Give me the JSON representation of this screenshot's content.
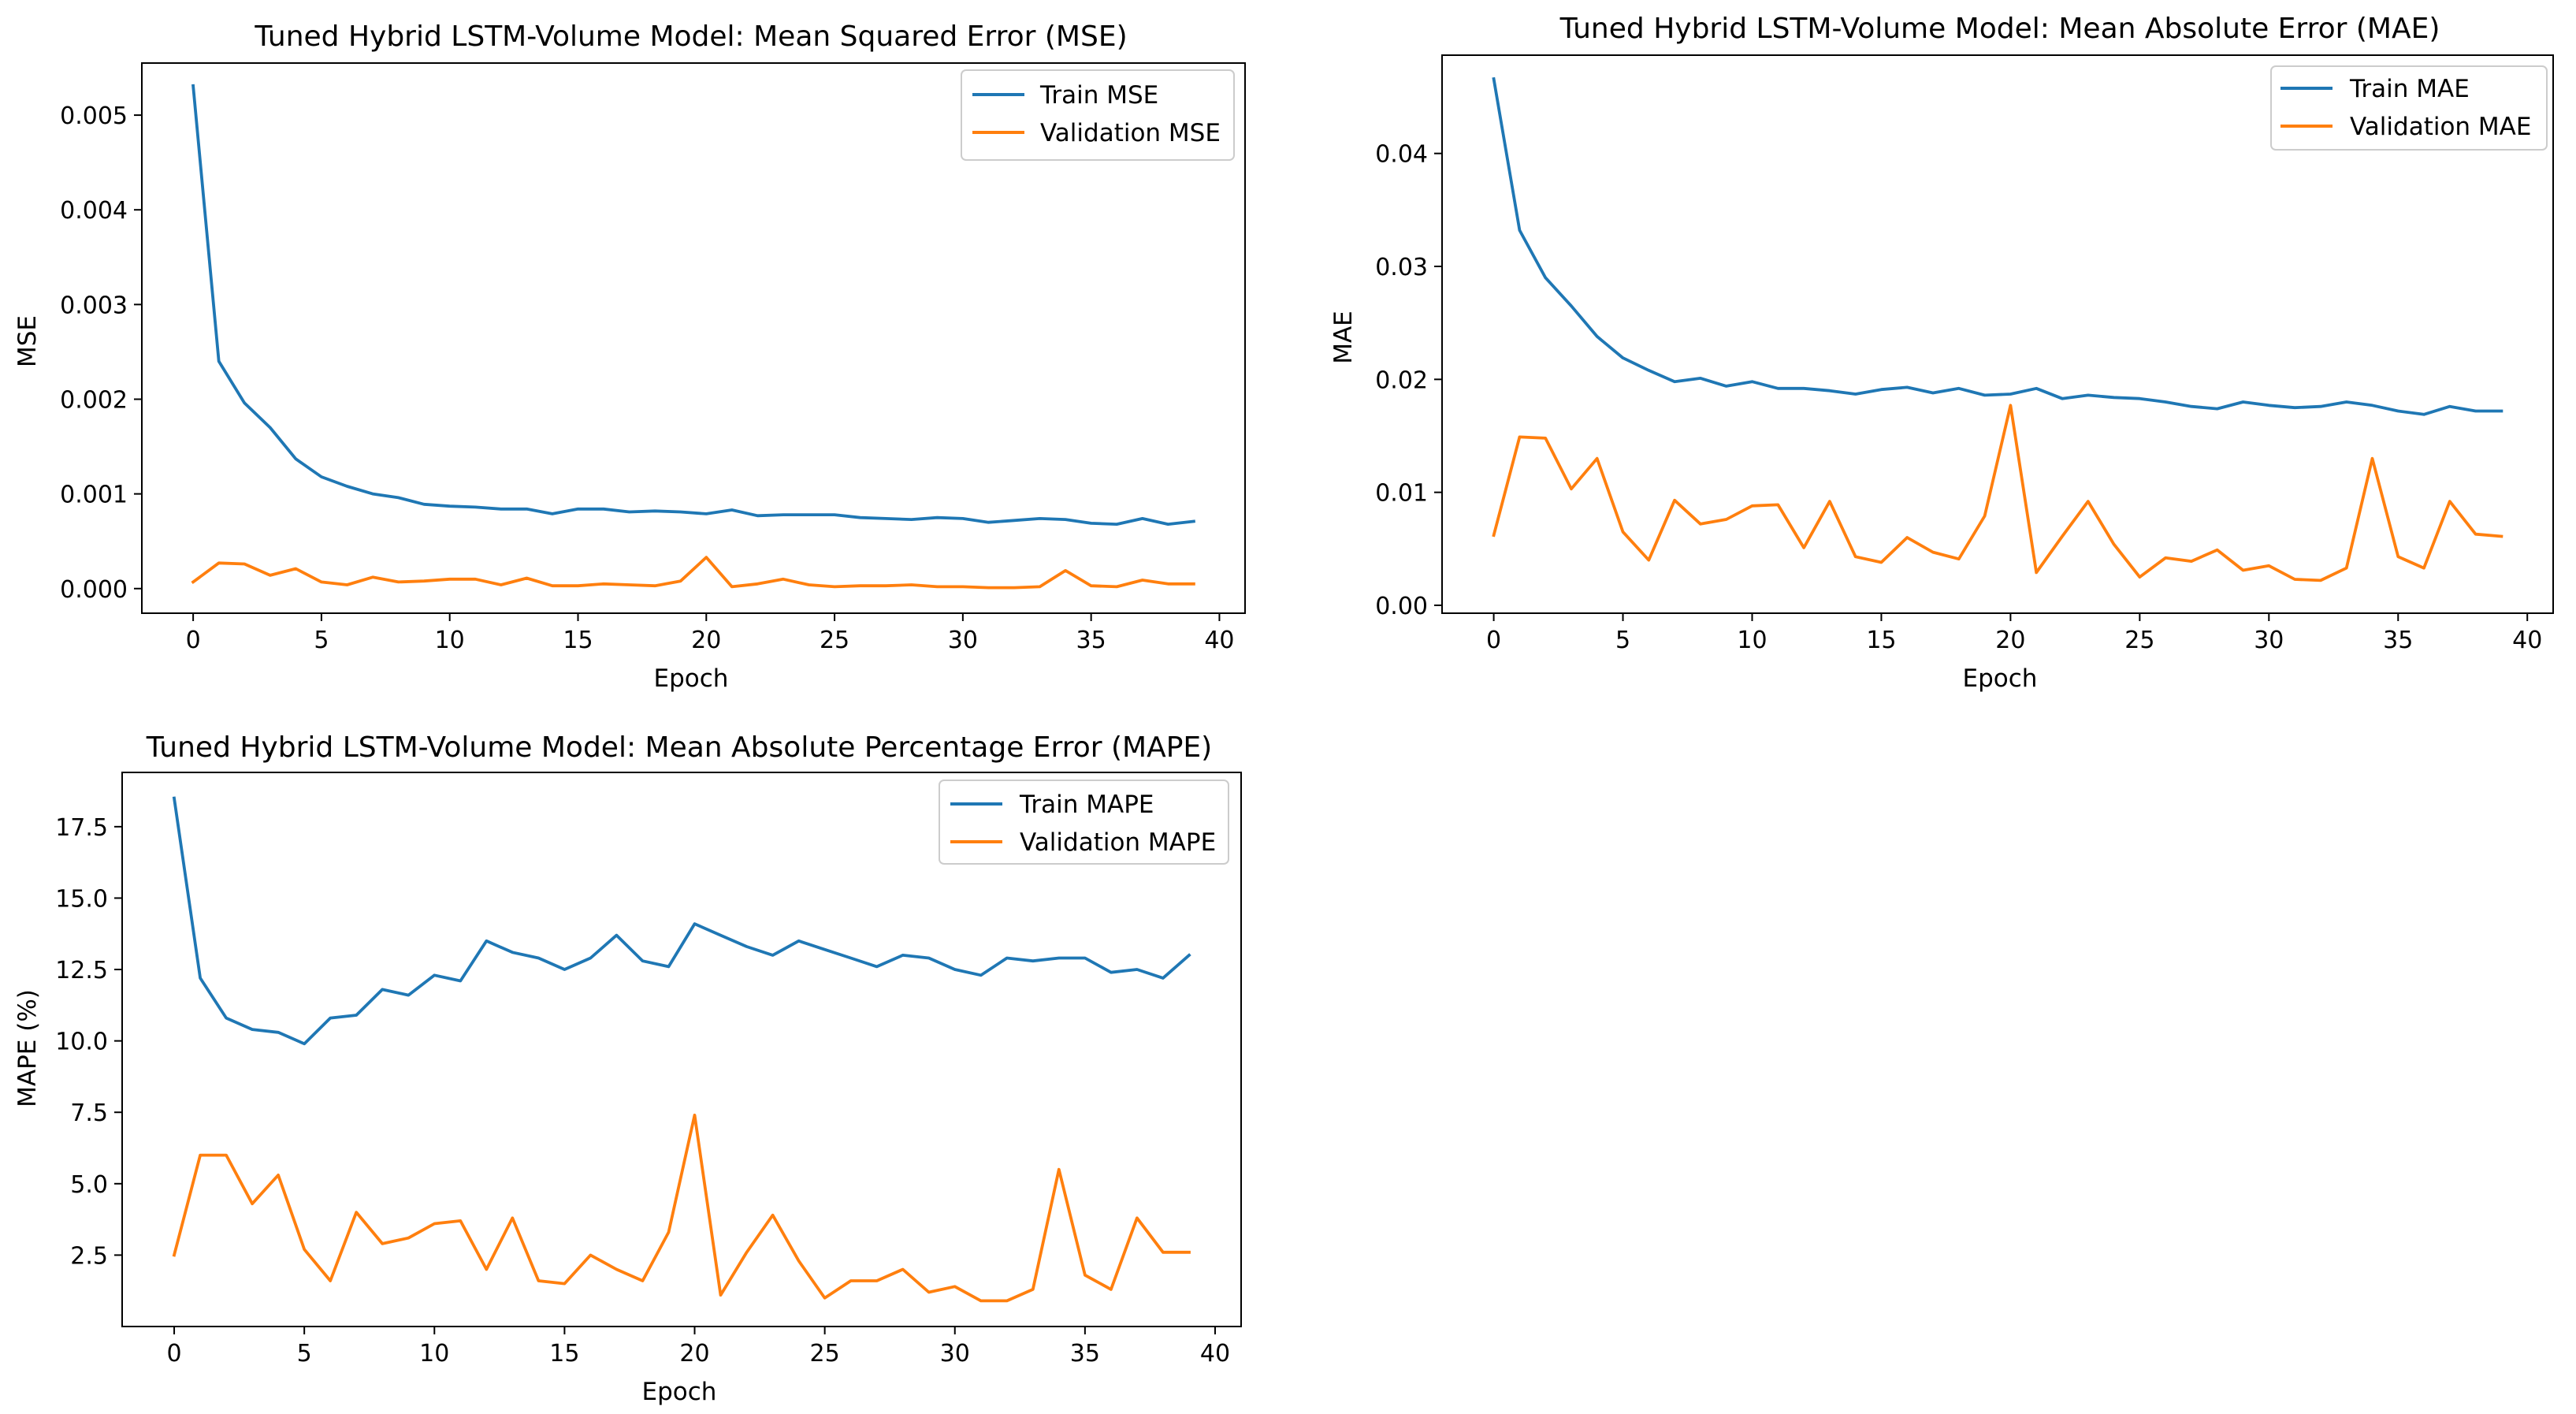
{
  "chart_data": [
    {
      "type": "line",
      "title": "Tuned Hybrid LSTM-Volume Model: Mean Squared Error (MSE)",
      "xlabel": "Epoch",
      "ylabel": "MSE",
      "xlim": [
        -2.0,
        41.0
      ],
      "ylim": [
        -0.00026,
        0.00555
      ],
      "xticks": [
        0,
        5,
        10,
        15,
        20,
        25,
        30,
        35,
        40
      ],
      "xtick_labels": [
        "0",
        "5",
        "10",
        "15",
        "20",
        "25",
        "30",
        "35",
        "40"
      ],
      "yticks": [
        0,
        0.001,
        0.002,
        0.003,
        0.004,
        0.005
      ],
      "ytick_labels": [
        "0.000",
        "0.001",
        "0.002",
        "0.003",
        "0.004",
        "0.005"
      ],
      "legend_loc": "upper right",
      "x": [
        0,
        1,
        2,
        3,
        4,
        5,
        6,
        7,
        8,
        9,
        10,
        11,
        12,
        13,
        14,
        15,
        16,
        17,
        18,
        19,
        20,
        21,
        22,
        23,
        24,
        25,
        26,
        27,
        28,
        29,
        30,
        31,
        32,
        33,
        34,
        35,
        36,
        37,
        38,
        39
      ],
      "series": [
        {
          "name": "Train MSE",
          "color": "#1f77b4",
          "values": [
            0.00531,
            0.0024,
            0.00196,
            0.0017,
            0.00137,
            0.00118,
            0.00108,
            0.001,
            0.00096,
            0.00089,
            0.00087,
            0.00086,
            0.00084,
            0.00084,
            0.00079,
            0.00084,
            0.00084,
            0.00081,
            0.00082,
            0.00081,
            0.00079,
            0.00083,
            0.00077,
            0.00078,
            0.00078,
            0.00078,
            0.00075,
            0.00074,
            0.00073,
            0.00075,
            0.00074,
            0.0007,
            0.00072,
            0.00074,
            0.00073,
            0.00069,
            0.00068,
            0.00074,
            0.00068,
            0.00071
          ]
        },
        {
          "name": "Validation MSE",
          "color": "#ff7f0e",
          "values": [
            7e-05,
            0.00027,
            0.00026,
            0.00014,
            0.00021,
            7e-05,
            4e-05,
            0.00012,
            7e-05,
            8e-05,
            0.0001,
            0.0001,
            4e-05,
            0.00011,
            3e-05,
            3e-05,
            5e-05,
            4e-05,
            3e-05,
            8e-05,
            0.00033,
            2e-05,
            5e-05,
            0.0001,
            4e-05,
            2e-05,
            3e-05,
            3e-05,
            4e-05,
            2e-05,
            2e-05,
            1e-05,
            1e-05,
            2e-05,
            0.00019,
            3e-05,
            2e-05,
            9e-05,
            5e-05,
            5e-05
          ]
        }
      ]
    },
    {
      "type": "line",
      "title": "Tuned Hybrid LSTM-Volume Model: Mean Absolute Error (MAE)",
      "xlabel": "Epoch",
      "ylabel": "MAE",
      "xlim": [
        -2.0,
        41.0
      ],
      "ylim": [
        -0.0007,
        0.0487
      ],
      "xticks": [
        0,
        5,
        10,
        15,
        20,
        25,
        30,
        35,
        40
      ],
      "xtick_labels": [
        "0",
        "5",
        "10",
        "15",
        "20",
        "25",
        "30",
        "35",
        "40"
      ],
      "yticks": [
        0,
        0.01,
        0.02,
        0.03,
        0.04
      ],
      "ytick_labels": [
        "0.00",
        "0.01",
        "0.02",
        "0.03",
        "0.04"
      ],
      "legend_loc": "upper right",
      "x": [
        0,
        1,
        2,
        3,
        4,
        5,
        6,
        7,
        8,
        9,
        10,
        11,
        12,
        13,
        14,
        15,
        16,
        17,
        18,
        19,
        20,
        21,
        22,
        23,
        24,
        25,
        26,
        27,
        28,
        29,
        30,
        31,
        32,
        33,
        34,
        35,
        36,
        37,
        38,
        39
      ],
      "series": [
        {
          "name": "Train MAE",
          "color": "#1f77b4",
          "values": [
            0.0466,
            0.0332,
            0.029,
            0.0265,
            0.0238,
            0.0219,
            0.0208,
            0.0198,
            0.0201,
            0.0194,
            0.0198,
            0.0192,
            0.0192,
            0.019,
            0.0187,
            0.0191,
            0.0193,
            0.0188,
            0.0192,
            0.0186,
            0.0187,
            0.0192,
            0.0183,
            0.0186,
            0.0184,
            0.0183,
            0.018,
            0.0176,
            0.0174,
            0.018,
            0.0177,
            0.0175,
            0.0176,
            0.018,
            0.0177,
            0.0172,
            0.0169,
            0.0176,
            0.0172,
            0.0172
          ]
        },
        {
          "name": "Validation MAE",
          "color": "#ff7f0e",
          "values": [
            0.0062,
            0.0149,
            0.0148,
            0.0103,
            0.013,
            0.0065,
            0.004,
            0.0093,
            0.0072,
            0.0076,
            0.0088,
            0.0089,
            0.0051,
            0.0092,
            0.0043,
            0.0038,
            0.006,
            0.0047,
            0.0041,
            0.0079,
            0.0177,
            0.0029,
            0.0061,
            0.0092,
            0.0054,
            0.0025,
            0.0042,
            0.0039,
            0.0049,
            0.0031,
            0.0035,
            0.0023,
            0.0022,
            0.0033,
            0.013,
            0.0043,
            0.0033,
            0.0092,
            0.0063,
            0.0061
          ]
        }
      ]
    },
    {
      "type": "line",
      "title": "Tuned Hybrid LSTM-Volume Model: Mean Absolute Percentage Error (MAPE)",
      "xlabel": "Epoch",
      "ylabel": "MAPE (%)",
      "xlim": [
        -2.0,
        41.0
      ],
      "ylim": [
        0.0,
        19.4
      ],
      "xticks": [
        0,
        5,
        10,
        15,
        20,
        25,
        30,
        35,
        40
      ],
      "xtick_labels": [
        "0",
        "5",
        "10",
        "15",
        "20",
        "25",
        "30",
        "35",
        "40"
      ],
      "yticks": [
        2.5,
        5.0,
        7.5,
        10.0,
        12.5,
        15.0,
        17.5
      ],
      "ytick_labels": [
        "2.5",
        "5.0",
        "7.5",
        "10.0",
        "12.5",
        "15.0",
        "17.5"
      ],
      "legend_loc": "upper right",
      "x": [
        0,
        1,
        2,
        3,
        4,
        5,
        6,
        7,
        8,
        9,
        10,
        11,
        12,
        13,
        14,
        15,
        16,
        17,
        18,
        19,
        20,
        21,
        22,
        23,
        24,
        25,
        26,
        27,
        28,
        29,
        30,
        31,
        32,
        33,
        34,
        35,
        36,
        37,
        38,
        39
      ],
      "series": [
        {
          "name": "Train MAPE",
          "color": "#1f77b4",
          "values": [
            18.5,
            12.2,
            10.8,
            10.4,
            10.3,
            9.9,
            10.8,
            10.9,
            11.8,
            11.6,
            12.3,
            12.1,
            13.5,
            13.1,
            12.9,
            12.5,
            12.9,
            13.7,
            12.8,
            12.6,
            14.1,
            13.7,
            13.3,
            13.0,
            13.5,
            13.2,
            12.9,
            12.6,
            13.0,
            12.9,
            12.5,
            12.3,
            12.9,
            12.8,
            12.9,
            12.9,
            12.4,
            12.5,
            12.2,
            13.0
          ]
        },
        {
          "name": "Validation MAPE",
          "color": "#ff7f0e",
          "values": [
            2.5,
            6.0,
            6.0,
            4.3,
            5.3,
            2.7,
            1.6,
            4.0,
            2.9,
            3.1,
            3.6,
            3.7,
            2.0,
            3.8,
            1.6,
            1.5,
            2.5,
            2.0,
            1.6,
            3.3,
            7.4,
            1.1,
            2.6,
            3.9,
            2.3,
            1.0,
            1.6,
            1.6,
            2.0,
            1.2,
            1.4,
            0.9,
            0.9,
            1.3,
            5.5,
            1.8,
            1.3,
            3.8,
            2.6,
            2.6
          ]
        }
      ]
    }
  ]
}
